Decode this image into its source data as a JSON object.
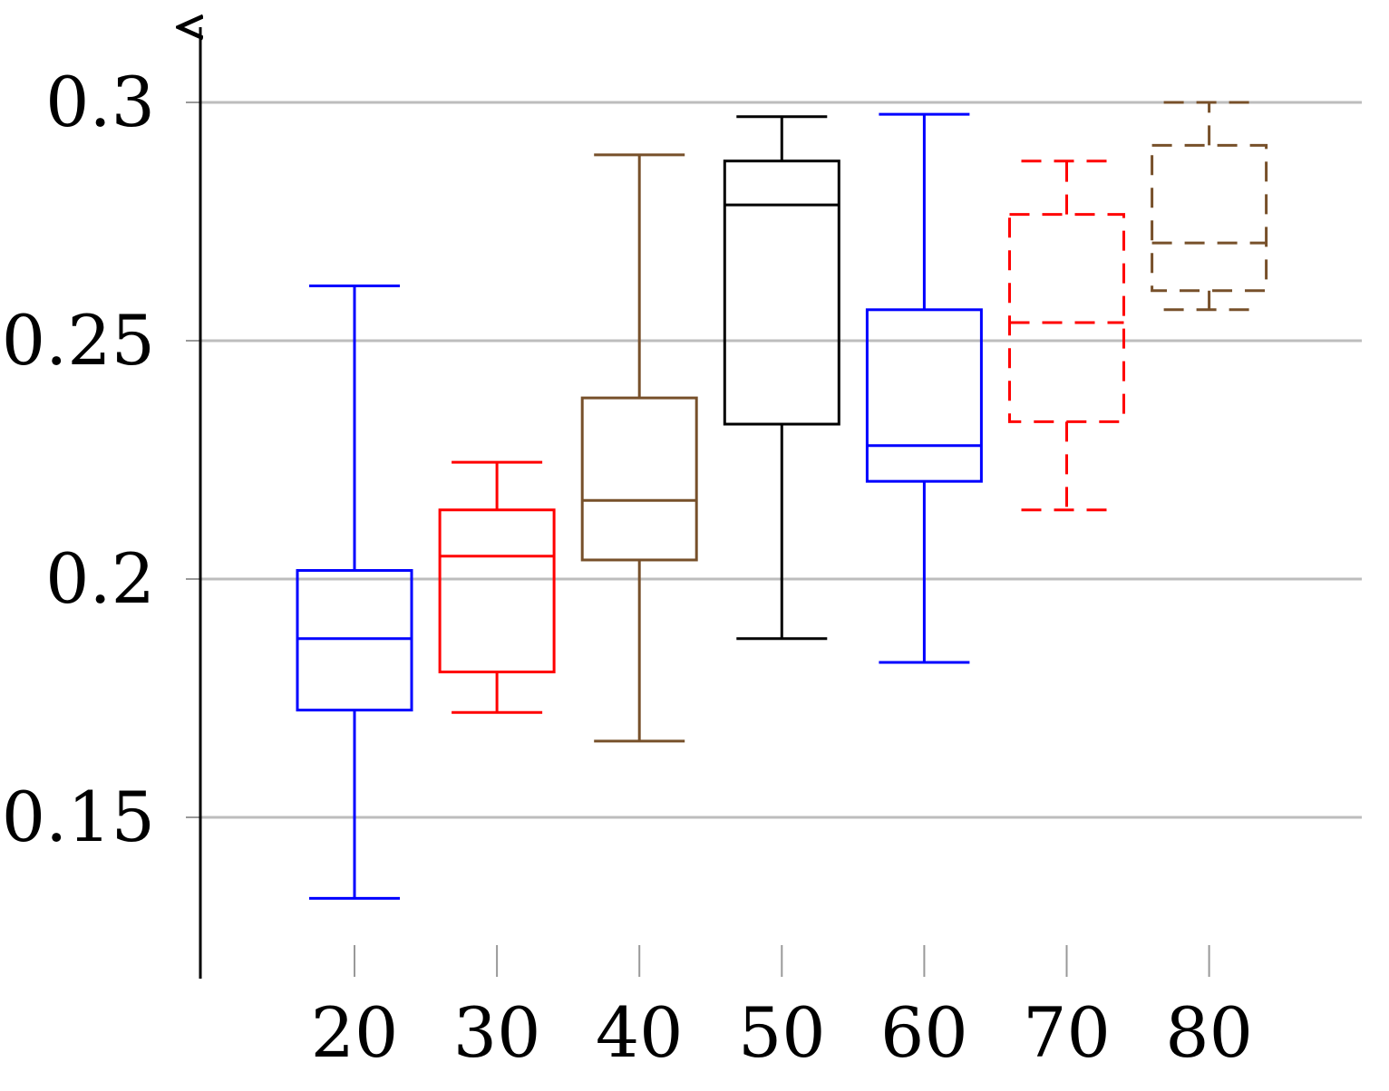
{
  "chart_data": {
    "type": "boxplot",
    "title": "",
    "xlabel": "",
    "ylabel": "",
    "ylim": [
      0.1215,
      0.3165
    ],
    "grid": "horizontal",
    "yticks": [
      {
        "value": 0.15,
        "label": "0.15"
      },
      {
        "value": 0.2,
        "label": "0.2"
      },
      {
        "value": 0.25,
        "label": "0.25"
      },
      {
        "value": 0.3,
        "label": "0.3"
      }
    ],
    "categories": [
      "20",
      "30",
      "40",
      "50",
      "60",
      "70",
      "80"
    ],
    "boxes": [
      {
        "category": "20",
        "color": "#0000ff",
        "dashed": false,
        "whisker_low": 0.133,
        "q1": 0.1725,
        "median": 0.1875,
        "q3": 0.2018,
        "whisker_high": 0.2615
      },
      {
        "category": "30",
        "color": "#ff0000",
        "dashed": false,
        "whisker_low": 0.172,
        "q1": 0.1805,
        "median": 0.2048,
        "q3": 0.2145,
        "whisker_high": 0.2245
      },
      {
        "category": "40",
        "color": "#77502a",
        "dashed": false,
        "whisker_low": 0.166,
        "q1": 0.204,
        "median": 0.2165,
        "q3": 0.238,
        "whisker_high": 0.289
      },
      {
        "category": "50",
        "color": "#000000",
        "dashed": false,
        "whisker_low": 0.1875,
        "q1": 0.2325,
        "median": 0.2785,
        "q3": 0.2877,
        "whisker_high": 0.297
      },
      {
        "category": "60",
        "color": "#0000ff",
        "dashed": false,
        "whisker_low": 0.1825,
        "q1": 0.2205,
        "median": 0.228,
        "q3": 0.2565,
        "whisker_high": 0.2975
      },
      {
        "category": "70",
        "color": "#ff0000",
        "dashed": true,
        "whisker_low": 0.2145,
        "q1": 0.233,
        "median": 0.2538,
        "q3": 0.2765,
        "whisker_high": 0.2877
      },
      {
        "category": "80",
        "color": "#77502a",
        "dashed": true,
        "whisker_low": 0.2565,
        "q1": 0.2605,
        "median": 0.2705,
        "q3": 0.291,
        "whisker_high": 0.3
      }
    ]
  }
}
